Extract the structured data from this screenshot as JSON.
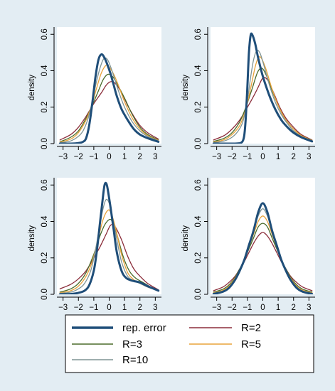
{
  "figure": {
    "background": "#e3edf3",
    "plot_background": "#ffffff"
  },
  "legend": {
    "entries": [
      {
        "label": "rep. error",
        "color": "#1f4e79"
      },
      {
        "label": "R=2",
        "color": "#8b2d3a"
      },
      {
        "label": "R=3",
        "color": "#4a6b2a"
      },
      {
        "label": "R=5",
        "color": "#e8a33a"
      },
      {
        "label": "R=10",
        "color": "#7f9494"
      }
    ]
  },
  "chart_data": [
    {
      "type": "line",
      "ylabel": "density",
      "xlabel": "",
      "xlim": [
        -3.4,
        3.4
      ],
      "ylim": [
        0,
        0.6
      ],
      "xticks": [
        "−3",
        "−2",
        "−1",
        "0",
        "1",
        "2",
        "3"
      ],
      "yticks": [
        "0.0",
        "0.2",
        "0.4",
        "0.6"
      ],
      "grid": "none",
      "series": [
        {
          "name": "rep. error",
          "color": "#1f4e79",
          "x": [
            -3.2,
            -2.5,
            -2,
            -1.7,
            -1.5,
            -1.3,
            -1.1,
            -0.9,
            -0.7,
            -0.5,
            -0.3,
            -0.1,
            0.1,
            0.3,
            0.5,
            0.8,
            1.2,
            1.6,
            2,
            2.5,
            3.2
          ],
          "y": [
            0,
            0,
            0.003,
            0.01,
            0.03,
            0.1,
            0.22,
            0.36,
            0.46,
            0.49,
            0.47,
            0.43,
            0.38,
            0.32,
            0.26,
            0.19,
            0.13,
            0.08,
            0.05,
            0.03,
            0.01
          ]
        },
        {
          "name": "R=10",
          "color": "#7f9494",
          "x": [
            -3.2,
            -2.5,
            -2,
            -1.7,
            -1.4,
            -1.1,
            -0.8,
            -0.5,
            -0.3,
            -0.1,
            0.1,
            0.3,
            0.6,
            1,
            1.5,
            2,
            2.5,
            3.2
          ],
          "y": [
            0.005,
            0.015,
            0.04,
            0.07,
            0.13,
            0.23,
            0.35,
            0.44,
            0.47,
            0.46,
            0.42,
            0.37,
            0.29,
            0.2,
            0.12,
            0.07,
            0.04,
            0.015
          ]
        },
        {
          "name": "R=5",
          "color": "#e8a33a",
          "x": [
            -3.2,
            -2.5,
            -2,
            -1.5,
            -1.1,
            -0.8,
            -0.5,
            -0.2,
            0,
            0.3,
            0.6,
            1,
            1.5,
            2,
            2.5,
            3.2
          ],
          "y": [
            0.008,
            0.025,
            0.06,
            0.13,
            0.22,
            0.31,
            0.39,
            0.43,
            0.42,
            0.38,
            0.32,
            0.23,
            0.14,
            0.08,
            0.045,
            0.017
          ]
        },
        {
          "name": "R=3",
          "color": "#4a6b2a",
          "x": [
            -3.2,
            -2.5,
            -2,
            -1.5,
            -1.1,
            -0.7,
            -0.4,
            -0.1,
            0.2,
            0.5,
            1,
            1.5,
            2,
            2.5,
            3.2
          ],
          "y": [
            0.01,
            0.035,
            0.07,
            0.14,
            0.21,
            0.29,
            0.35,
            0.38,
            0.37,
            0.33,
            0.25,
            0.16,
            0.09,
            0.05,
            0.02
          ]
        },
        {
          "name": "R=2",
          "color": "#8b2d3a",
          "x": [
            -3.2,
            -2.5,
            -2,
            -1.5,
            -1,
            -0.5,
            -0.2,
            0.1,
            0.4,
            0.8,
            1.2,
            1.6,
            2,
            2.5,
            3.2
          ],
          "y": [
            0.02,
            0.05,
            0.09,
            0.15,
            0.22,
            0.28,
            0.32,
            0.34,
            0.33,
            0.28,
            0.21,
            0.15,
            0.1,
            0.06,
            0.025
          ]
        }
      ]
    },
    {
      "type": "line",
      "ylabel": "density",
      "xlabel": "",
      "xlim": [
        -3.4,
        3.4
      ],
      "ylim": [
        0,
        0.6
      ],
      "xticks": [
        "−3",
        "−2",
        "−1",
        "0",
        "1",
        "2",
        "3"
      ],
      "yticks": [
        "0.0",
        "0.2",
        "0.4",
        "0.6"
      ],
      "grid": "none",
      "series": [
        {
          "name": "rep. error",
          "color": "#1f4e79",
          "x": [
            -3.2,
            -2,
            -1.5,
            -1.3,
            -1.2,
            -1.1,
            -1,
            -0.9,
            -0.8,
            -0.7,
            -0.5,
            -0.3,
            0,
            0.4,
            0.8,
            1.2,
            1.6,
            2,
            2.5,
            3.2
          ],
          "y": [
            0,
            0,
            0.002,
            0.015,
            0.05,
            0.15,
            0.32,
            0.5,
            0.59,
            0.6,
            0.55,
            0.47,
            0.37,
            0.27,
            0.19,
            0.13,
            0.09,
            0.06,
            0.035,
            0.012
          ]
        },
        {
          "name": "R=10",
          "color": "#7f9494",
          "x": [
            -3.2,
            -2.5,
            -2,
            -1.6,
            -1.3,
            -1,
            -0.8,
            -0.6,
            -0.4,
            -0.2,
            0,
            0.4,
            0.8,
            1.2,
            1.6,
            2,
            2.5,
            3.2
          ],
          "y": [
            0.005,
            0.015,
            0.035,
            0.07,
            0.12,
            0.24,
            0.36,
            0.46,
            0.51,
            0.5,
            0.45,
            0.33,
            0.23,
            0.16,
            0.11,
            0.07,
            0.04,
            0.015
          ]
        },
        {
          "name": "R=5",
          "color": "#e8a33a",
          "x": [
            -3.2,
            -2.5,
            -2,
            -1.5,
            -1.1,
            -0.8,
            -0.5,
            -0.3,
            -0.1,
            0.2,
            0.6,
            1,
            1.5,
            2,
            2.5,
            3.2
          ],
          "y": [
            0.008,
            0.022,
            0.05,
            0.1,
            0.19,
            0.3,
            0.42,
            0.47,
            0.47,
            0.41,
            0.3,
            0.21,
            0.13,
            0.08,
            0.045,
            0.017
          ]
        },
        {
          "name": "R=3",
          "color": "#4a6b2a",
          "x": [
            -3.2,
            -2.5,
            -2,
            -1.5,
            -1.1,
            -0.7,
            -0.4,
            -0.2,
            0,
            0.3,
            0.7,
            1.1,
            1.5,
            2,
            2.5,
            3.2
          ],
          "y": [
            0.012,
            0.03,
            0.06,
            0.12,
            0.2,
            0.3,
            0.38,
            0.41,
            0.41,
            0.36,
            0.27,
            0.19,
            0.13,
            0.08,
            0.045,
            0.018
          ]
        },
        {
          "name": "R=2",
          "color": "#8b2d3a",
          "x": [
            -3.2,
            -2.5,
            -2,
            -1.5,
            -1,
            -0.6,
            -0.3,
            0,
            0.3,
            0.7,
            1.1,
            1.5,
            2,
            2.5,
            3.2
          ],
          "y": [
            0.02,
            0.045,
            0.08,
            0.13,
            0.2,
            0.26,
            0.31,
            0.36,
            0.35,
            0.28,
            0.2,
            0.14,
            0.09,
            0.05,
            0.02
          ]
        }
      ]
    },
    {
      "type": "line",
      "ylabel": "density",
      "xlabel": "",
      "xlim": [
        -3.4,
        3.4
      ],
      "ylim": [
        0,
        0.6
      ],
      "xticks": [
        "−3",
        "−2",
        "−1",
        "0",
        "1",
        "2",
        "3"
      ],
      "yticks": [
        "0.0",
        "0.2",
        "0.4",
        "0.6"
      ],
      "grid": "none",
      "series": [
        {
          "name": "rep. error",
          "color": "#1f4e79",
          "x": [
            -3.2,
            -2.5,
            -2,
            -1.6,
            -1.3,
            -1,
            -0.8,
            -0.6,
            -0.4,
            -0.3,
            -0.2,
            -0.1,
            0.1,
            0.3,
            0.5,
            0.8,
            1.1,
            1.5,
            2,
            2.5,
            3.2
          ],
          "y": [
            0,
            0.002,
            0.008,
            0.02,
            0.05,
            0.13,
            0.24,
            0.39,
            0.54,
            0.6,
            0.61,
            0.58,
            0.47,
            0.35,
            0.23,
            0.13,
            0.09,
            0.075,
            0.065,
            0.045,
            0.02
          ]
        },
        {
          "name": "R=10",
          "color": "#7f9494",
          "x": [
            -3.2,
            -2.5,
            -2,
            -1.6,
            -1.2,
            -0.9,
            -0.6,
            -0.4,
            -0.2,
            0,
            0.2,
            0.5,
            0.8,
            1.2,
            1.6,
            2,
            2.5,
            3.2
          ],
          "y": [
            0.005,
            0.012,
            0.03,
            0.06,
            0.13,
            0.24,
            0.38,
            0.47,
            0.52,
            0.5,
            0.43,
            0.3,
            0.18,
            0.1,
            0.075,
            0.06,
            0.04,
            0.02
          ]
        },
        {
          "name": "R=5",
          "color": "#e8a33a",
          "x": [
            -3.2,
            -2.5,
            -2,
            -1.5,
            -1.1,
            -0.7,
            -0.4,
            -0.1,
            0.1,
            0.4,
            0.8,
            1.2,
            1.6,
            2,
            2.5,
            3.2
          ],
          "y": [
            0.008,
            0.02,
            0.045,
            0.1,
            0.18,
            0.31,
            0.41,
            0.46,
            0.45,
            0.37,
            0.22,
            0.12,
            0.08,
            0.06,
            0.04,
            0.02
          ]
        },
        {
          "name": "R=3",
          "color": "#4a6b2a",
          "x": [
            -3.2,
            -2.5,
            -2,
            -1.5,
            -1,
            -0.6,
            -0.3,
            0,
            0.2,
            0.5,
            0.9,
            1.3,
            1.7,
            2.2,
            2.7,
            3.2
          ],
          "y": [
            0.012,
            0.03,
            0.06,
            0.12,
            0.22,
            0.32,
            0.38,
            0.41,
            0.4,
            0.33,
            0.21,
            0.13,
            0.09,
            0.065,
            0.04,
            0.02
          ]
        },
        {
          "name": "R=2",
          "color": "#8b2d3a",
          "x": [
            -3.2,
            -2.5,
            -2,
            -1.5,
            -1,
            -0.6,
            -0.2,
            0.1,
            0.4,
            0.8,
            1.2,
            1.6,
            2,
            2.5,
            3.2
          ],
          "y": [
            0.03,
            0.055,
            0.085,
            0.13,
            0.2,
            0.26,
            0.33,
            0.38,
            0.37,
            0.3,
            0.21,
            0.14,
            0.1,
            0.06,
            0.025
          ]
        }
      ]
    },
    {
      "type": "line",
      "ylabel": "density",
      "xlabel": "",
      "xlim": [
        -3.4,
        3.4
      ],
      "ylim": [
        0,
        0.6
      ],
      "xticks": [
        "−3",
        "−2",
        "−1",
        "0",
        "1",
        "2",
        "3"
      ],
      "yticks": [
        "0.0",
        "0.2",
        "0.4",
        "0.6"
      ],
      "grid": "none",
      "series": [
        {
          "name": "rep. error",
          "color": "#1f4e79",
          "x": [
            -3.2,
            -2.6,
            -2.2,
            -1.8,
            -1.5,
            -1.2,
            -0.9,
            -0.6,
            -0.3,
            0,
            0.3,
            0.6,
            0.9,
            1.2,
            1.5,
            1.8,
            2.2,
            2.6,
            3.2
          ],
          "y": [
            0.002,
            0.014,
            0.035,
            0.08,
            0.13,
            0.19,
            0.27,
            0.35,
            0.45,
            0.5,
            0.45,
            0.35,
            0.27,
            0.19,
            0.13,
            0.08,
            0.035,
            0.014,
            0.002
          ]
        },
        {
          "name": "R=10",
          "color": "#7f9494",
          "x": [
            -3.2,
            -2.6,
            -2.2,
            -1.8,
            -1.5,
            -1.2,
            -0.9,
            -0.6,
            -0.3,
            0,
            0.3,
            0.6,
            0.9,
            1.2,
            1.5,
            1.8,
            2.2,
            2.6,
            3.2
          ],
          "y": [
            0.005,
            0.018,
            0.04,
            0.085,
            0.13,
            0.19,
            0.27,
            0.35,
            0.43,
            0.47,
            0.43,
            0.35,
            0.27,
            0.19,
            0.13,
            0.085,
            0.04,
            0.018,
            0.005
          ]
        },
        {
          "name": "R=5",
          "color": "#e8a33a",
          "x": [
            -3.2,
            -2.6,
            -2.2,
            -1.8,
            -1.5,
            -1.2,
            -0.9,
            -0.6,
            -0.3,
            0,
            0.3,
            0.6,
            0.9,
            1.2,
            1.5,
            1.8,
            2.2,
            2.6,
            3.2
          ],
          "y": [
            0.008,
            0.022,
            0.045,
            0.09,
            0.135,
            0.19,
            0.26,
            0.33,
            0.4,
            0.43,
            0.4,
            0.33,
            0.26,
            0.19,
            0.135,
            0.09,
            0.045,
            0.022,
            0.008
          ]
        },
        {
          "name": "R=3",
          "color": "#4a6b2a",
          "x": [
            -3.2,
            -2.6,
            -2.2,
            -1.8,
            -1.5,
            -1.2,
            -0.9,
            -0.6,
            -0.3,
            0,
            0.3,
            0.6,
            0.9,
            1.2,
            1.5,
            1.8,
            2.2,
            2.6,
            3.2
          ],
          "y": [
            0.012,
            0.028,
            0.052,
            0.095,
            0.14,
            0.19,
            0.25,
            0.31,
            0.37,
            0.39,
            0.37,
            0.31,
            0.25,
            0.19,
            0.14,
            0.095,
            0.052,
            0.028,
            0.012
          ]
        },
        {
          "name": "R=2",
          "color": "#8b2d3a",
          "x": [
            -3.2,
            -2.6,
            -2.2,
            -1.8,
            -1.5,
            -1.2,
            -0.9,
            -0.6,
            -0.3,
            0,
            0.3,
            0.6,
            0.9,
            1.2,
            1.5,
            1.8,
            2.2,
            2.6,
            3.2
          ],
          "y": [
            0.02,
            0.04,
            0.065,
            0.1,
            0.14,
            0.18,
            0.23,
            0.28,
            0.32,
            0.34,
            0.32,
            0.28,
            0.23,
            0.18,
            0.14,
            0.1,
            0.065,
            0.04,
            0.02
          ]
        }
      ]
    }
  ]
}
